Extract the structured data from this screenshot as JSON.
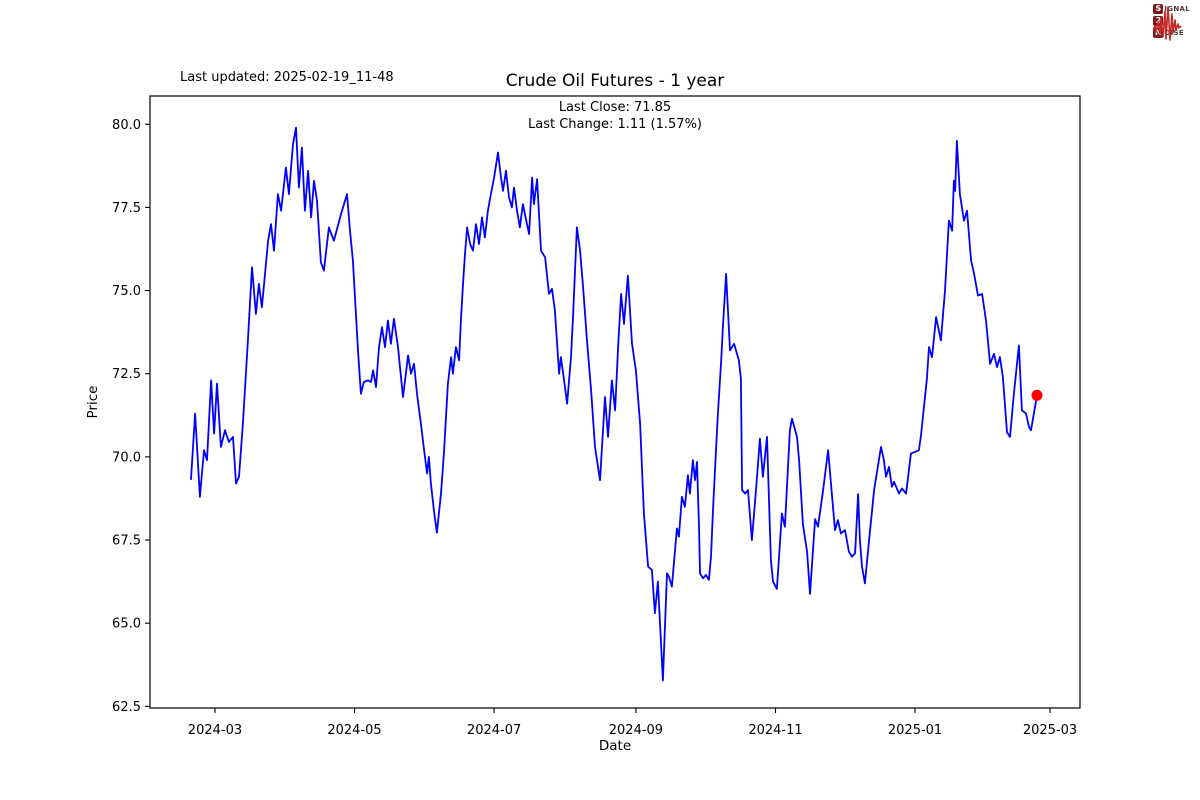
{
  "header": {
    "last_updated": "Last updated: 2025-02-19_11-48"
  },
  "logo": {
    "s": "S",
    "signal_rest": "IGNAL",
    "two": "2",
    "n": "N",
    "noise_rest": "OISE",
    "wave_color": "#c62828",
    "badge_color": "#7a1a1a"
  },
  "chart_data": {
    "type": "line",
    "title": "Crude Oil Futures - 1 year",
    "annotation": {
      "last_close": "Last Close: 71.85",
      "last_change": "Last Change: 1.11 (1.57%)"
    },
    "xlabel": "Date",
    "ylabel": "Price",
    "line_color": "#0000ff",
    "marker_color": "#ff0000",
    "last_close": 71.85,
    "last_change": 1.11,
    "last_change_pct": 1.57,
    "x_unit": "days since 2024-03-01",
    "xlim": [
      -28.4,
      378.1
    ],
    "ylim": [
      62.45,
      80.85
    ],
    "grid": false,
    "legend": "none",
    "xticks": [
      {
        "d": 0,
        "label": "2024-03"
      },
      {
        "d": 61,
        "label": "2024-05"
      },
      {
        "d": 122,
        "label": "2024-07"
      },
      {
        "d": 184,
        "label": "2024-09"
      },
      {
        "d": 245,
        "label": "2024-11"
      },
      {
        "d": 306,
        "label": "2025-01"
      },
      {
        "d": 365,
        "label": "2025-03"
      }
    ],
    "yticks": [
      62.5,
      65.0,
      67.5,
      70.0,
      72.5,
      75.0,
      77.5,
      80.0
    ],
    "series": [
      {
        "name": "Crude Oil Futures price",
        "points": [
          [
            -10.5,
            69.33
          ],
          [
            -8.7,
            71.3
          ],
          [
            -6.6,
            68.8
          ],
          [
            -4.8,
            70.2
          ],
          [
            -3.5,
            69.9
          ],
          [
            -1.7,
            72.3
          ],
          [
            -0.4,
            70.7
          ],
          [
            0.9,
            72.2
          ],
          [
            2.6,
            70.3
          ],
          [
            4.4,
            70.8
          ],
          [
            6.1,
            70.45
          ],
          [
            7.9,
            70.6
          ],
          [
            9.2,
            69.2
          ],
          [
            10.5,
            69.4
          ],
          [
            12.2,
            71.0
          ],
          [
            14.4,
            73.5
          ],
          [
            16.2,
            75.7
          ],
          [
            17.9,
            74.3
          ],
          [
            19.2,
            75.2
          ],
          [
            20.5,
            74.5
          ],
          [
            23.2,
            76.5
          ],
          [
            24.5,
            77.0
          ],
          [
            25.8,
            76.2
          ],
          [
            27.5,
            77.9
          ],
          [
            28.9,
            77.4
          ],
          [
            31,
            78.7
          ],
          [
            32.3,
            77.9
          ],
          [
            34.1,
            79.4
          ],
          [
            35.4,
            79.9
          ],
          [
            36.7,
            78.1
          ],
          [
            38,
            79.3
          ],
          [
            39.3,
            77.4
          ],
          [
            40.7,
            78.6
          ],
          [
            42,
            77.2
          ],
          [
            43.3,
            78.3
          ],
          [
            44.6,
            77.7
          ],
          [
            46.3,
            75.85
          ],
          [
            47.6,
            75.6
          ],
          [
            49.8,
            76.9
          ],
          [
            52,
            76.5
          ],
          [
            55.1,
            77.3
          ],
          [
            57.7,
            77.9
          ],
          [
            59,
            76.8
          ],
          [
            60.3,
            75.9
          ],
          [
            62.5,
            73.2
          ],
          [
            63.8,
            71.9
          ],
          [
            65.1,
            72.25
          ],
          [
            66.9,
            72.3
          ],
          [
            68.2,
            72.25
          ],
          [
            69.1,
            72.6
          ],
          [
            70.4,
            72.1
          ],
          [
            71.7,
            73.3
          ],
          [
            73,
            73.9
          ],
          [
            74.3,
            73.3
          ],
          [
            75.6,
            74.1
          ],
          [
            76.9,
            73.4
          ],
          [
            78.2,
            74.15
          ],
          [
            80,
            73.3
          ],
          [
            82.2,
            71.8
          ],
          [
            84.4,
            73.05
          ],
          [
            85.7,
            72.5
          ],
          [
            87,
            72.8
          ],
          [
            88.3,
            71.9
          ],
          [
            90,
            71.0
          ],
          [
            91.4,
            70.2
          ],
          [
            92.7,
            69.5
          ],
          [
            93.5,
            70.0
          ],
          [
            94.4,
            69.2
          ],
          [
            95.7,
            68.4
          ],
          [
            97,
            67.72
          ],
          [
            98.8,
            68.9
          ],
          [
            100.1,
            70.15
          ],
          [
            101.8,
            72.2
          ],
          [
            103.2,
            73.0
          ],
          [
            104,
            72.5
          ],
          [
            105.3,
            73.3
          ],
          [
            106.7,
            72.9
          ],
          [
            107.5,
            74.1
          ],
          [
            108.4,
            75.2
          ],
          [
            109.3,
            76.1
          ],
          [
            110.2,
            76.9
          ],
          [
            111.5,
            76.4
          ],
          [
            112.8,
            76.2
          ],
          [
            114.1,
            77.0
          ],
          [
            115.4,
            76.4
          ],
          [
            116.7,
            77.2
          ],
          [
            118,
            76.6
          ],
          [
            119.3,
            77.4
          ],
          [
            120.6,
            77.9
          ],
          [
            122,
            78.4
          ],
          [
            123.7,
            79.15
          ],
          [
            125,
            78.4
          ],
          [
            125.9,
            78.0
          ],
          [
            127.2,
            78.6
          ],
          [
            128.5,
            77.8
          ],
          [
            129.8,
            77.5
          ],
          [
            130.7,
            78.1
          ],
          [
            132,
            77.4
          ],
          [
            133.3,
            76.9
          ],
          [
            134.6,
            77.6
          ],
          [
            135.9,
            77.15
          ],
          [
            137.3,
            76.7
          ],
          [
            138.6,
            78.4
          ],
          [
            139.4,
            77.6
          ],
          [
            140.8,
            78.35
          ],
          [
            142.5,
            76.2
          ],
          [
            144.3,
            76.0
          ],
          [
            146,
            74.9
          ],
          [
            147.3,
            75.05
          ],
          [
            148.6,
            74.4
          ],
          [
            150.4,
            72.5
          ],
          [
            151.2,
            73.0
          ],
          [
            152.6,
            72.3
          ],
          [
            153.9,
            71.6
          ],
          [
            155.6,
            73.0
          ],
          [
            156.5,
            74.2
          ],
          [
            158.2,
            76.9
          ],
          [
            159.6,
            76.2
          ],
          [
            160.9,
            75.1
          ],
          [
            162.6,
            73.5
          ],
          [
            164.4,
            72.0
          ],
          [
            166.1,
            70.3
          ],
          [
            168.3,
            69.3
          ],
          [
            170.5,
            71.8
          ],
          [
            171.8,
            70.6
          ],
          [
            173.5,
            72.3
          ],
          [
            174.9,
            71.4
          ],
          [
            176.2,
            73.3
          ],
          [
            177.5,
            74.9
          ],
          [
            178.8,
            74.0
          ],
          [
            180.5,
            75.45
          ],
          [
            182.3,
            73.4
          ],
          [
            184,
            72.6
          ],
          [
            185.8,
            71.0
          ],
          [
            187.5,
            68.3
          ],
          [
            189.3,
            66.7
          ],
          [
            191,
            66.6
          ],
          [
            192.3,
            65.3
          ],
          [
            193.6,
            66.25
          ],
          [
            195.8,
            63.28
          ],
          [
            197.6,
            66.5
          ],
          [
            198.4,
            66.4
          ],
          [
            199.7,
            66.1
          ],
          [
            201.9,
            67.85
          ],
          [
            202.8,
            67.6
          ],
          [
            204.1,
            68.8
          ],
          [
            205.4,
            68.5
          ],
          [
            206.7,
            69.45
          ],
          [
            207.6,
            68.9
          ],
          [
            208.9,
            69.9
          ],
          [
            209.8,
            69.3
          ],
          [
            210.7,
            69.85
          ],
          [
            211.6,
            67.8
          ],
          [
            212,
            66.5
          ],
          [
            213.3,
            66.35
          ],
          [
            214.6,
            66.45
          ],
          [
            215.9,
            66.3
          ],
          [
            216.8,
            67.0
          ],
          [
            217.7,
            68.4
          ],
          [
            219,
            70.2
          ],
          [
            219.9,
            71.4
          ],
          [
            221.2,
            72.8
          ],
          [
            222,
            73.9
          ],
          [
            223.4,
            75.5
          ],
          [
            225.1,
            73.2
          ],
          [
            226.9,
            73.4
          ],
          [
            229,
            72.9
          ],
          [
            229.9,
            72.35
          ],
          [
            230.4,
            69.0
          ],
          [
            231.7,
            68.9
          ],
          [
            233,
            69.0
          ],
          [
            234.7,
            67.5
          ],
          [
            236.5,
            69.0
          ],
          [
            238.2,
            70.55
          ],
          [
            239.5,
            69.4
          ],
          [
            241.3,
            70.6
          ],
          [
            243,
            66.9
          ],
          [
            243.9,
            66.25
          ],
          [
            245.6,
            66.03
          ],
          [
            247.8,
            68.3
          ],
          [
            249.1,
            67.9
          ],
          [
            251.3,
            70.8
          ],
          [
            252.2,
            71.15
          ],
          [
            254.4,
            70.6
          ],
          [
            255.3,
            69.9
          ],
          [
            257,
            67.98
          ],
          [
            258.8,
            67.14
          ],
          [
            260.1,
            65.88
          ],
          [
            262.3,
            68.13
          ],
          [
            263.6,
            67.9
          ],
          [
            265.8,
            69.0
          ],
          [
            268,
            70.2
          ],
          [
            271,
            67.8
          ],
          [
            272.3,
            68.1
          ],
          [
            273.6,
            67.7
          ],
          [
            275.4,
            67.8
          ],
          [
            277.1,
            67.15
          ],
          [
            278.4,
            67.0
          ],
          [
            279.8,
            67.1
          ],
          [
            281.1,
            68.88
          ],
          [
            281.9,
            67.5
          ],
          [
            282.8,
            66.7
          ],
          [
            284.1,
            66.2
          ],
          [
            285.9,
            67.5
          ],
          [
            288.1,
            69.0
          ],
          [
            291.1,
            70.3
          ],
          [
            292.4,
            69.9
          ],
          [
            293.3,
            69.4
          ],
          [
            294.6,
            69.7
          ],
          [
            295.9,
            69.1
          ],
          [
            296.8,
            69.25
          ],
          [
            299,
            68.9
          ],
          [
            300.3,
            69.05
          ],
          [
            302.1,
            68.9
          ],
          [
            304.2,
            70.1
          ],
          [
            306,
            70.15
          ],
          [
            307.7,
            70.2
          ],
          [
            308.6,
            70.65
          ],
          [
            311.2,
            72.35
          ],
          [
            312.1,
            73.3
          ],
          [
            313.4,
            73.0
          ],
          [
            315.2,
            74.2
          ],
          [
            317.3,
            73.5
          ],
          [
            319.1,
            75.0
          ],
          [
            320.8,
            77.1
          ],
          [
            322.2,
            76.8
          ],
          [
            323,
            78.3
          ],
          [
            323.5,
            78.0
          ],
          [
            324.3,
            79.5
          ],
          [
            325.6,
            77.9
          ],
          [
            327.4,
            77.1
          ],
          [
            328.7,
            77.4
          ],
          [
            330.5,
            75.9
          ],
          [
            331.8,
            75.5
          ],
          [
            333.5,
            74.85
          ],
          [
            335.3,
            74.9
          ],
          [
            337,
            74.1
          ],
          [
            338.8,
            72.8
          ],
          [
            340.5,
            73.1
          ],
          [
            341.8,
            72.7
          ],
          [
            343.1,
            73.0
          ],
          [
            344.4,
            72.4
          ],
          [
            346.2,
            70.74
          ],
          [
            347.5,
            70.6
          ],
          [
            349.2,
            71.9
          ],
          [
            351.4,
            73.35
          ],
          [
            352.7,
            71.4
          ],
          [
            354.5,
            71.3
          ],
          [
            355.8,
            70.9
          ],
          [
            356.7,
            70.8
          ],
          [
            359.3,
            71.85
          ]
        ]
      }
    ]
  }
}
